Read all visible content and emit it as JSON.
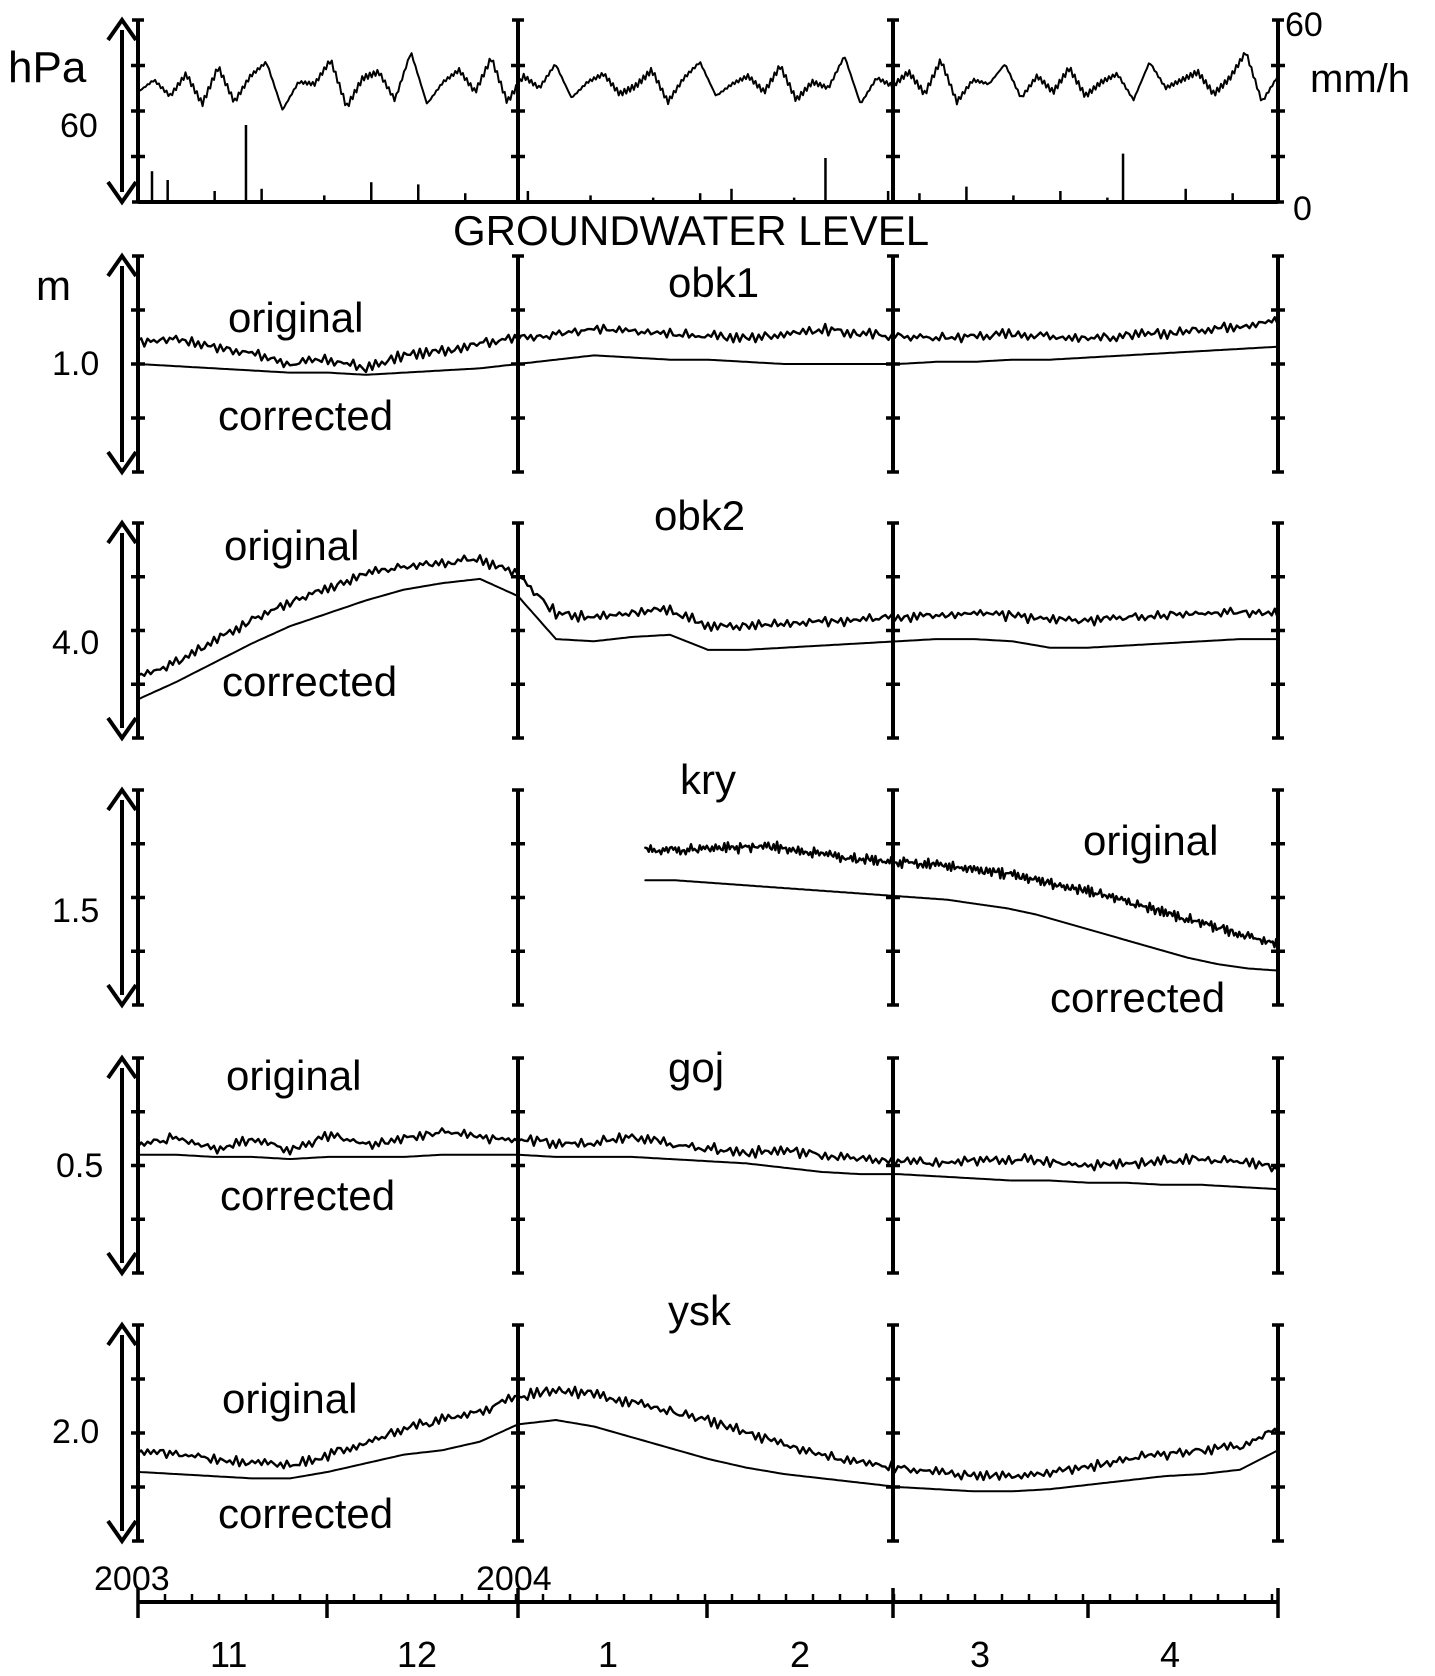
{
  "chart_data": {
    "type": "line",
    "title": "GROUNDWATER LEVEL",
    "x_start_year": "2003",
    "x_mid_year": "2004",
    "month_labels": [
      "11",
      "12",
      "1",
      "2",
      "3",
      "4"
    ],
    "top_panel": {
      "left_unit": "hPa",
      "left_tick": "60",
      "right_unit": "mm/h",
      "right_ticks": [
        "60",
        "0"
      ],
      "pressure_series": [
        0.3,
        0.42,
        0.26,
        0.48,
        0.18,
        0.55,
        0.2,
        0.46,
        0.6,
        0.12,
        0.4,
        0.38,
        0.62,
        0.15,
        0.44,
        0.5,
        0.22,
        0.7,
        0.18,
        0.4,
        0.52,
        0.3,
        0.64,
        0.2,
        0.46,
        0.34,
        0.58,
        0.24,
        0.4,
        0.48,
        0.28,
        0.36,
        0.52,
        0.2,
        0.44,
        0.6,
        0.26,
        0.38,
        0.46,
        0.3,
        0.56,
        0.22,
        0.4,
        0.34,
        0.66,
        0.18,
        0.44,
        0.36,
        0.5,
        0.28,
        0.62,
        0.2,
        0.42,
        0.38,
        0.58,
        0.24,
        0.46,
        0.3,
        0.54,
        0.26,
        0.4,
        0.48,
        0.22,
        0.6,
        0.34,
        0.42,
        0.5,
        0.28,
        0.44,
        0.7,
        0.2,
        0.46
      ],
      "rain_series": [
        0.14,
        0.1,
        0,
        0,
        0.05,
        0,
        0.35,
        0.06,
        0,
        0,
        0,
        0.03,
        0,
        0,
        0.09,
        0,
        0,
        0.08,
        0,
        0,
        0.04,
        0,
        0,
        0,
        0.05,
        0,
        0,
        0,
        0.03,
        0,
        0,
        0,
        0.02,
        0,
        0,
        0.04,
        0,
        0.06,
        0,
        0,
        0,
        0.02,
        0,
        0.2,
        0,
        0,
        0,
        0.05,
        0,
        0.04,
        0,
        0,
        0.07,
        0,
        0,
        0.03,
        0,
        0,
        0.05,
        0,
        0,
        0.02,
        0.22,
        0,
        0,
        0,
        0.06,
        0,
        0,
        0.04,
        0,
        0
      ]
    },
    "panels_y_unit": "m",
    "panels": [
      {
        "name": "obk1",
        "ytick_label": "1.0",
        "label_original": "original",
        "label_corrected": "corrected",
        "original": [
          0.6,
          0.62,
          0.58,
          0.55,
          0.5,
          0.52,
          0.48,
          0.54,
          0.56,
          0.6,
          0.62,
          0.64,
          0.66,
          0.65,
          0.64,
          0.63,
          0.62,
          0.64,
          0.66,
          0.64,
          0.63,
          0.62,
          0.63,
          0.64,
          0.63,
          0.62,
          0.63,
          0.64,
          0.66,
          0.68,
          0.7
        ],
        "corrected": [
          0.5,
          0.49,
          0.48,
          0.47,
          0.46,
          0.46,
          0.45,
          0.46,
          0.47,
          0.48,
          0.5,
          0.52,
          0.54,
          0.53,
          0.52,
          0.52,
          0.51,
          0.5,
          0.5,
          0.5,
          0.5,
          0.51,
          0.51,
          0.52,
          0.52,
          0.53,
          0.54,
          0.55,
          0.56,
          0.57,
          0.58
        ]
      },
      {
        "name": "obk2",
        "ytick_label": "4.0",
        "label_original": "original",
        "label_corrected": "corrected",
        "original": [
          0.28,
          0.35,
          0.45,
          0.55,
          0.63,
          0.7,
          0.76,
          0.8,
          0.82,
          0.83,
          0.76,
          0.58,
          0.56,
          0.58,
          0.6,
          0.52,
          0.52,
          0.53,
          0.54,
          0.55,
          0.56,
          0.57,
          0.58,
          0.57,
          0.55,
          0.55,
          0.56,
          0.57,
          0.58,
          0.58,
          0.58
        ],
        "corrected": [
          0.18,
          0.26,
          0.35,
          0.44,
          0.52,
          0.58,
          0.64,
          0.69,
          0.72,
          0.74,
          0.66,
          0.46,
          0.45,
          0.47,
          0.48,
          0.41,
          0.41,
          0.42,
          0.43,
          0.44,
          0.45,
          0.46,
          0.46,
          0.45,
          0.42,
          0.42,
          0.43,
          0.44,
          0.45,
          0.46,
          0.46
        ]
      },
      {
        "name": "kry",
        "ytick_label": "1.5",
        "label_original": "original",
        "label_corrected": "corrected",
        "start_fraction": 0.445,
        "original": [
          0.72,
          0.72,
          0.73,
          0.73,
          0.74,
          0.72,
          0.7,
          0.68,
          0.67,
          0.66,
          0.65,
          0.63,
          0.61,
          0.58,
          0.55,
          0.52,
          0.48,
          0.44,
          0.4,
          0.36,
          0.32,
          0.28
        ],
        "corrected": [
          0.58,
          0.58,
          0.57,
          0.56,
          0.55,
          0.54,
          0.53,
          0.52,
          0.51,
          0.5,
          0.49,
          0.47,
          0.45,
          0.42,
          0.38,
          0.34,
          0.3,
          0.26,
          0.22,
          0.19,
          0.17,
          0.16
        ]
      },
      {
        "name": "goj",
        "ytick_label": "0.5",
        "label_original": "original",
        "label_corrected": "corrected",
        "original": [
          0.6,
          0.63,
          0.58,
          0.62,
          0.57,
          0.64,
          0.6,
          0.62,
          0.66,
          0.63,
          0.62,
          0.6,
          0.61,
          0.64,
          0.6,
          0.58,
          0.56,
          0.57,
          0.55,
          0.53,
          0.52,
          0.51,
          0.52,
          0.53,
          0.52,
          0.5,
          0.51,
          0.52,
          0.53,
          0.52,
          0.49
        ],
        "corrected": [
          0.55,
          0.55,
          0.54,
          0.54,
          0.53,
          0.54,
          0.54,
          0.54,
          0.55,
          0.55,
          0.55,
          0.54,
          0.54,
          0.54,
          0.53,
          0.52,
          0.51,
          0.49,
          0.47,
          0.46,
          0.46,
          0.45,
          0.44,
          0.43,
          0.43,
          0.42,
          0.42,
          0.41,
          0.41,
          0.4,
          0.39
        ]
      },
      {
        "name": "ysk",
        "ytick_label": "2.0",
        "label_original": "original",
        "label_corrected": "corrected",
        "original": [
          0.42,
          0.4,
          0.38,
          0.36,
          0.35,
          0.4,
          0.46,
          0.52,
          0.56,
          0.6,
          0.67,
          0.7,
          0.68,
          0.64,
          0.6,
          0.56,
          0.5,
          0.45,
          0.4,
          0.36,
          0.34,
          0.32,
          0.3,
          0.3,
          0.32,
          0.34,
          0.38,
          0.4,
          0.42,
          0.44,
          0.52
        ],
        "corrected": [
          0.32,
          0.31,
          0.3,
          0.29,
          0.29,
          0.32,
          0.36,
          0.4,
          0.42,
          0.46,
          0.54,
          0.56,
          0.53,
          0.48,
          0.43,
          0.38,
          0.34,
          0.31,
          0.29,
          0.27,
          0.25,
          0.24,
          0.23,
          0.23,
          0.24,
          0.26,
          0.28,
          0.3,
          0.31,
          0.33,
          0.42
        ]
      }
    ]
  }
}
